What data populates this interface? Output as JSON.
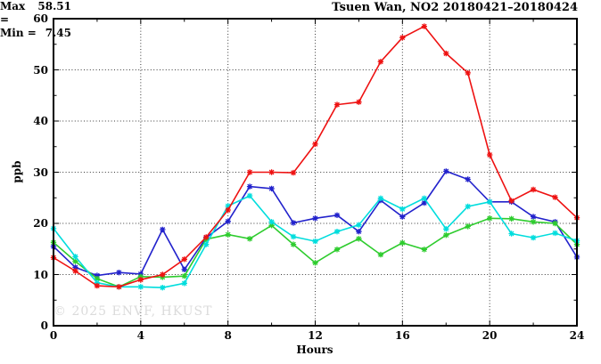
{
  "header": {
    "title": "Tsuen Wan, NO2 20180421–20180424",
    "max_key": "Max =",
    "max_val": "58.51",
    "min_key": "Min =",
    "min_val": "7.45"
  },
  "watermark": "© 2025 ENVF, HKUST",
  "chart_data": {
    "type": "line",
    "title": "Tsuen Wan, NO2 20180421–20180424",
    "xlabel": "Hours",
    "ylabel": "ppb",
    "xlim": [
      0,
      24
    ],
    "ylim": [
      0,
      60
    ],
    "xticks": [
      0,
      4,
      8,
      12,
      16,
      20,
      24
    ],
    "xminors": [
      2,
      6,
      10,
      14,
      18,
      22
    ],
    "yticks": [
      0,
      10,
      20,
      30,
      40,
      50,
      60
    ],
    "yminors": [
      5,
      15,
      25,
      35,
      45,
      55
    ],
    "grid": "dotted",
    "legend": "none",
    "max": 58.51,
    "min": 7.45,
    "x": [
      0,
      1,
      2,
      3,
      4,
      5,
      6,
      7,
      8,
      9,
      10,
      11,
      12,
      13,
      14,
      15,
      16,
      17,
      18,
      19,
      20,
      21,
      22,
      23,
      24
    ],
    "series": [
      {
        "name": "blue",
        "color": "#2222cc",
        "values": [
          15.5,
          11.4,
          9.8,
          10.4,
          10.1,
          18.8,
          11.0,
          17.2,
          20.4,
          27.2,
          26.8,
          20.1,
          21.0,
          21.6,
          18.4,
          24.5,
          21.3,
          24.0,
          30.2,
          28.6,
          24.2,
          24.2,
          21.3,
          20.3,
          13.4
        ]
      },
      {
        "name": "green",
        "color": "#2ecc2e",
        "values": [
          16.3,
          12.6,
          9.2,
          7.6,
          9.6,
          9.5,
          9.7,
          16.9,
          17.8,
          17.0,
          19.6,
          15.9,
          12.3,
          14.9,
          17.0,
          13.9,
          16.2,
          14.9,
          17.7,
          19.4,
          21.0,
          20.9,
          20.3,
          20.0,
          15.9
        ]
      },
      {
        "name": "cyan",
        "color": "#00dddd",
        "values": [
          19.0,
          13.5,
          8.4,
          7.6,
          7.6,
          7.45,
          8.3,
          15.9,
          23.4,
          25.4,
          20.3,
          17.4,
          16.5,
          18.4,
          19.7,
          24.9,
          22.8,
          24.9,
          18.9,
          23.3,
          24.2,
          18.0,
          17.2,
          18.1,
          16.6
        ]
      },
      {
        "name": "red",
        "color": "#ee1111",
        "values": [
          13.3,
          10.7,
          7.8,
          7.6,
          9.0,
          10.0,
          13.0,
          17.3,
          22.6,
          30.0,
          30.0,
          29.9,
          35.5,
          43.2,
          43.7,
          51.6,
          56.3,
          58.5,
          53.2,
          49.4,
          33.4,
          24.4,
          26.6,
          25.1,
          21.1
        ]
      }
    ]
  }
}
